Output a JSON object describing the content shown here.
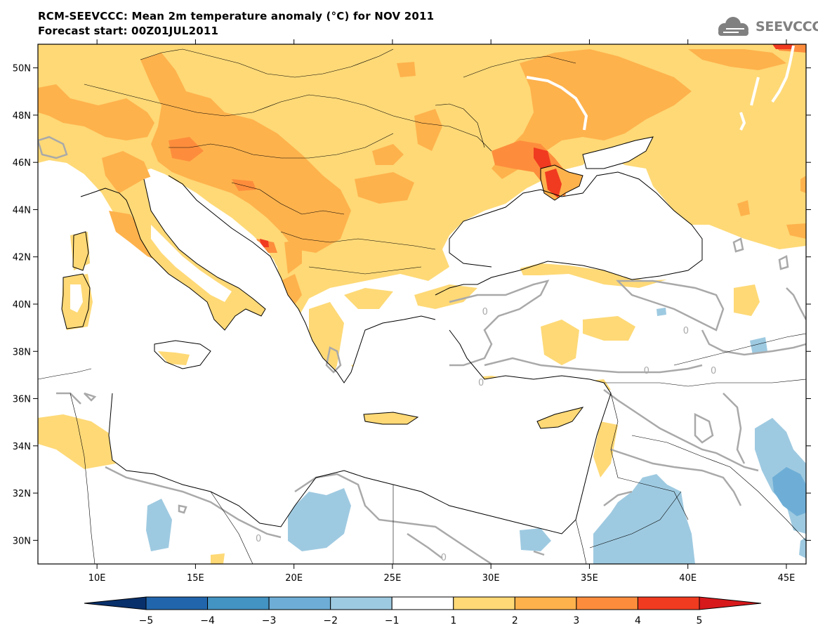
{
  "header": {
    "title": "RCM-SEEVCCC: Mean 2m temperature anomaly (°C) for NOV 2011",
    "subtitle": "Forecast start: 00Z01JUL2011"
  },
  "logo": {
    "text": "SEEVCCC",
    "icon": "cloud-icon",
    "color": "#808080"
  },
  "map": {
    "lon_range": [
      7,
      46
    ],
    "lat_range": [
      29,
      51
    ],
    "lon_ticks": [
      {
        "value": 10,
        "label": "10E"
      },
      {
        "value": 15,
        "label": "15E"
      },
      {
        "value": 20,
        "label": "20E"
      },
      {
        "value": 25,
        "label": "25E"
      },
      {
        "value": 30,
        "label": "30E"
      },
      {
        "value": 35,
        "label": "35E"
      },
      {
        "value": 40,
        "label": "40E"
      },
      {
        "value": 45,
        "label": "45E"
      }
    ],
    "lat_ticks": [
      {
        "value": 30,
        "label": "30N"
      },
      {
        "value": 32,
        "label": "32N"
      },
      {
        "value": 34,
        "label": "34N"
      },
      {
        "value": 36,
        "label": "36N"
      },
      {
        "value": 38,
        "label": "38N"
      },
      {
        "value": 40,
        "label": "40N"
      },
      {
        "value": 42,
        "label": "42N"
      },
      {
        "value": 44,
        "label": "44N"
      },
      {
        "value": 46,
        "label": "46N"
      },
      {
        "value": 48,
        "label": "48N"
      },
      {
        "value": 50,
        "label": "50N"
      }
    ],
    "contour_label": "0",
    "contour_labels_at": [
      [
        29.7,
        39.7
      ],
      [
        39.9,
        38.9
      ],
      [
        37.9,
        37.2
      ],
      [
        41.3,
        37.2
      ],
      [
        29.5,
        36.7
      ],
      [
        18.2,
        30.1
      ],
      [
        27.6,
        29.3
      ]
    ]
  },
  "colorbar": {
    "levels": [
      -5,
      -4,
      -3,
      -2,
      -1,
      1,
      2,
      3,
      4,
      5
    ],
    "labels": [
      "−5",
      "−4",
      "−3",
      "−2",
      "−1",
      "1",
      "2",
      "3",
      "4",
      "5"
    ],
    "colors": [
      "#2166ac",
      "#4393c3",
      "#6eaed6",
      "#9ecae1",
      "#ffffff",
      "#fed976",
      "#feb24c",
      "#fd8d3c",
      "#f03b20"
    ],
    "under_color": "#08306b",
    "over_color": "#d7191c"
  },
  "colors": {
    "sea": "#ffffff",
    "coast": "#000000",
    "zero_contour": "#a9a9a9",
    "anom_1_2": "#fed976",
    "anom_2_3": "#feb24c",
    "anom_3_4": "#fd8d3c",
    "anom_4_5": "#f03b20",
    "anom_m1_m2": "#9ecae1",
    "anom_m2_m3": "#6eaed6"
  }
}
